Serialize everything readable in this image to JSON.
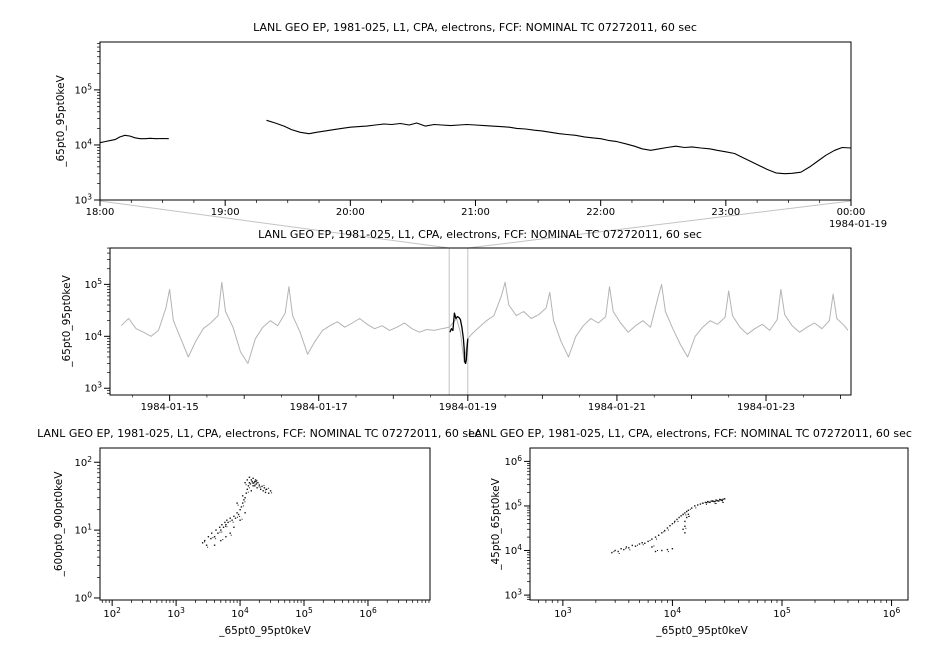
{
  "figure": {
    "background": "#ffffff",
    "context_gray": "#b4b4b4",
    "connector_gray": "#c3c3c3",
    "line_black": "#000000",
    "point_color": "#1a1a1a"
  },
  "chart_data": [
    {
      "id": "top",
      "type": "line",
      "title": "LANL GEO EP, 1981-025, L1, CPA, electrons, FCF: NOMINAL TC 07272011, 60 sec",
      "ylabel": "_65pt0_95pt0keV",
      "xlabel": "",
      "x_axis": {
        "kind": "time-hours",
        "range": [
          18,
          24
        ],
        "ticks": [
          18,
          19,
          20,
          21,
          22,
          23,
          24
        ],
        "tick_labels": [
          "18:00",
          "19:00",
          "20:00",
          "21:00",
          "22:00",
          "23:00",
          "00:00"
        ],
        "minor_step": 0.25,
        "date_label": "1984-01-19"
      },
      "y_axis": {
        "kind": "log",
        "range_log10": [
          3,
          5.87
        ],
        "tick_decades": [
          3,
          4,
          5
        ]
      },
      "series": [
        {
          "name": "_65pt0_95pt0keV",
          "color": "#000000",
          "width": 1.1,
          "x": [
            18.0,
            18.04,
            18.08,
            18.12,
            18.16,
            18.2,
            18.24,
            18.28,
            18.32,
            18.36,
            18.4,
            18.45,
            18.5,
            18.55,
            18.95,
            19.33,
            19.4,
            19.47,
            19.53,
            19.6,
            19.67,
            19.73,
            19.8,
            19.87,
            19.93,
            20.0,
            20.07,
            20.13,
            20.2,
            20.27,
            20.33,
            20.4,
            20.47,
            20.53,
            20.6,
            20.67,
            20.73,
            20.8,
            20.87,
            20.93,
            21.0,
            21.07,
            21.13,
            21.2,
            21.27,
            21.33,
            21.4,
            21.47,
            21.53,
            21.6,
            21.67,
            21.73,
            21.8,
            21.87,
            21.93,
            22.0,
            22.07,
            22.13,
            22.2,
            22.27,
            22.33,
            22.4,
            22.47,
            22.53,
            22.6,
            22.67,
            22.73,
            22.8,
            22.87,
            22.93,
            23.0,
            23.07,
            23.13,
            23.2,
            23.27,
            23.33,
            23.4,
            23.47,
            23.53,
            23.6,
            23.67,
            23.73,
            23.8,
            23.87,
            23.93,
            24.0
          ],
          "y": [
            11000.0,
            11500.0,
            12000.0,
            12500.0,
            14000.0,
            15000.0,
            14500.0,
            13500.0,
            13000.0,
            13000.0,
            13200.0,
            13000.0,
            13100.0,
            13000.0,
            null,
            28000.0,
            25000.0,
            22000.0,
            19000.0,
            17000.0,
            16000.0,
            17000.0,
            18000.0,
            19000.0,
            20000.0,
            21000.0,
            21500.0,
            22000.0,
            23000.0,
            24000.0,
            23500.0,
            24500.0,
            23000.0,
            25000.0,
            22000.0,
            23500.0,
            23000.0,
            22500.0,
            23000.0,
            23500.0,
            23000.0,
            22500.0,
            22000.0,
            21500.0,
            21000.0,
            20000.0,
            19500.0,
            18500.0,
            18000.0,
            17000.0,
            16000.0,
            15500.0,
            15000.0,
            14000.0,
            13500.0,
            13000.0,
            12000.0,
            11500.0,
            10500.0,
            9500.0,
            8500.0,
            8000.0,
            8500.0,
            9000.0,
            9500.0,
            9000.0,
            9200.0,
            8800.0,
            8500.0,
            8000.0,
            7500.0,
            7000.0,
            6000.0,
            5000.0,
            4200.0,
            3600.0,
            3100.0,
            3000.0,
            3050.0,
            3200.0,
            4000.0,
            5000.0,
            6500.0,
            8000.0,
            9000.0,
            8800.0
          ]
        }
      ]
    },
    {
      "id": "context",
      "type": "line",
      "title": "LANL GEO EP, 1981-025, L1, CPA, electrons, FCF: NOMINAL TC 07272011, 60 sec",
      "ylabel": "_65pt0_95pt0keV",
      "xlabel": "",
      "x_axis": {
        "kind": "time-days",
        "range": [
          14.2,
          24.14
        ],
        "ticks": [
          15,
          17,
          19,
          21,
          23
        ],
        "tick_labels": [
          "1984-01-15",
          "1984-01-17",
          "1984-01-19",
          "1984-01-21",
          "1984-01-23"
        ]
      },
      "y_axis": {
        "kind": "log",
        "range_log10": [
          2.87,
          5.7
        ],
        "tick_decades": [
          3,
          4,
          5
        ]
      },
      "highlight_region": {
        "x_range": [
          18.75,
          19.0
        ]
      },
      "series": [
        {
          "name": "context-series",
          "color": "#b4b4b4",
          "width": 1,
          "x": [
            14.35,
            14.45,
            14.55,
            14.65,
            14.75,
            14.85,
            14.95,
            15.0,
            15.05,
            15.15,
            15.25,
            15.35,
            15.45,
            15.55,
            15.65,
            15.7,
            15.75,
            15.85,
            15.95,
            16.05,
            16.15,
            16.25,
            16.35,
            16.45,
            16.55,
            16.6,
            16.65,
            16.75,
            16.85,
            16.95,
            17.05,
            17.15,
            17.25,
            17.35,
            17.45,
            17.55,
            17.65,
            17.75,
            17.85,
            17.95,
            18.05,
            18.15,
            18.25,
            18.35,
            18.45,
            18.55,
            18.65,
            18.75,
            18.85,
            18.9,
            18.95,
            19.0,
            19.05,
            19.15,
            19.25,
            19.35,
            19.45,
            19.5,
            19.55,
            19.65,
            19.75,
            19.85,
            19.95,
            20.05,
            20.1,
            20.15,
            20.25,
            20.35,
            20.45,
            20.55,
            20.65,
            20.75,
            20.85,
            20.9,
            20.95,
            21.05,
            21.15,
            21.25,
            21.35,
            21.45,
            21.55,
            21.6,
            21.65,
            21.75,
            21.85,
            21.95,
            22.05,
            22.15,
            22.25,
            22.35,
            22.45,
            22.5,
            22.55,
            22.65,
            22.75,
            22.85,
            22.95,
            23.05,
            23.15,
            23.2,
            23.25,
            23.35,
            23.45,
            23.55,
            23.65,
            23.75,
            23.85,
            23.9,
            23.95,
            24.05,
            24.1
          ],
          "y": [
            16000.0,
            22000.0,
            14000.0,
            12000.0,
            10000.0,
            13000.0,
            35000.0,
            80000.0,
            20000.0,
            9000.0,
            4000.0,
            8000.0,
            14000.0,
            18000.0,
            25000.0,
            110000.0,
            30000.0,
            15000.0,
            5000.0,
            3000.0,
            9000.0,
            15000.0,
            20000.0,
            16000.0,
            28000.0,
            90000.0,
            25000.0,
            12000.0,
            4500.0,
            8000.0,
            13000.0,
            16000.0,
            19000.0,
            15000.0,
            18000.0,
            22000.0,
            17000.0,
            14000.0,
            16000.0,
            13000.0,
            15000.0,
            18000.0,
            14000.0,
            12000.0,
            13500.0,
            13000.0,
            14000.0,
            15000.0,
            22000.0,
            12000.0,
            3200.0,
            9000.0,
            11000.0,
            15000.0,
            20000.0,
            25000.0,
            60000.0,
            110000.0,
            40000.0,
            25000.0,
            30000.0,
            22000.0,
            26000.0,
            35000.0,
            70000.0,
            20000.0,
            8000.0,
            4000.0,
            10000.0,
            16000.0,
            22000.0,
            18000.0,
            24000.0,
            90000.0,
            30000.0,
            18000.0,
            12000.0,
            16000.0,
            20000.0,
            15000.0,
            55000.0,
            100000.0,
            30000.0,
            14000.0,
            7000.0,
            4000.0,
            10000.0,
            15000.0,
            20000.0,
            17000.0,
            23000.0,
            75000.0,
            25000.0,
            15000.0,
            11000.0,
            14000.0,
            17000.0,
            13000.0,
            21000.0,
            80000.0,
            26000.0,
            16000.0,
            12000.0,
            15000.0,
            18000.0,
            14000.0,
            20000.0,
            65000.0,
            22000.0,
            16000.0,
            13000.0
          ]
        },
        {
          "name": "selected-interval",
          "color": "#000000",
          "width": 1.3,
          "x": [
            18.76,
            18.78,
            18.8,
            18.82,
            18.84,
            18.86,
            18.88,
            18.9,
            18.92,
            18.94,
            18.95,
            18.96,
            18.97,
            18.98,
            18.99,
            19.0
          ],
          "y": [
            12000.0,
            14000.0,
            13000.0,
            28000.0,
            22000.0,
            24000.0,
            23000.0,
            21000.0,
            15000.0,
            9000.0,
            6000.0,
            3200.0,
            3000.0,
            3500.0,
            6000.0,
            9000.0
          ]
        }
      ]
    },
    {
      "id": "scatter-left",
      "type": "scatter",
      "title": "LANL GEO EP, 1981-025, L1, CPA, electrons, FCF: NOMINAL TC 07272011, 60 sec",
      "xlabel": "_65pt0_95pt0keV",
      "ylabel": "_600pt0_900pt0keV",
      "x_axis": {
        "kind": "log",
        "range_log10": [
          1.81,
          6.97
        ],
        "tick_decades": [
          2,
          3,
          4,
          5,
          6
        ]
      },
      "y_axis": {
        "kind": "log",
        "range_log10": [
          -0.03,
          2.21
        ],
        "tick_decades": [
          0,
          1,
          2
        ]
      },
      "points_x": [
        2600.0,
        2800.0,
        3000.0,
        3200.0,
        3500.0,
        3600.0,
        4000.0,
        4200.0,
        4500.0,
        4800.0,
        5000.0,
        5200.0,
        5500.0,
        5800.0,
        6000.0,
        6200.0,
        6500.0,
        7000.0,
        7500.0,
        8000.0,
        8500.0,
        9000.0,
        9500.0,
        10000.0,
        10500.0,
        11000.0,
        11500.0,
        12000.0,
        12500.0,
        13000.0,
        13500.0,
        14000.0,
        14500.0,
        15000.0,
        15500.0,
        16000.0,
        16500.0,
        17000.0,
        17500.0,
        18000.0,
        18500.0,
        19000.0,
        20000.0,
        21000.0,
        22000.0,
        23000.0,
        24000.0,
        25000.0,
        26000.0,
        28000.0,
        30000.0,
        4000.0,
        5000.0,
        6000.0,
        7000.0,
        8000.0,
        10000.0,
        12000.0,
        9000.0,
        13000.0,
        16000.0,
        14000.0,
        12000.0,
        15000.0,
        17000.0,
        11000.0
      ],
      "points_y": [
        6.5,
        7,
        6,
        8,
        7.5,
        9,
        8,
        10,
        9,
        11,
        10,
        12,
        11,
        13,
        12,
        14,
        13,
        15,
        14,
        16,
        15,
        18,
        17,
        20,
        22,
        25,
        28,
        30,
        35,
        40,
        45,
        50,
        48,
        55,
        52,
        58,
        50,
        45,
        55,
        48,
        42,
        50,
        46,
        40,
        44,
        38,
        42,
        36,
        40,
        35,
        38,
        6,
        7,
        8,
        9,
        11,
        14,
        18,
        25,
        55,
        45,
        60,
        50,
        38,
        52,
        32
      ],
      "color": "#1a1a1a"
    },
    {
      "id": "scatter-right",
      "type": "scatter",
      "title": "LANL GEO EP, 1981-025, L1, CPA, electrons, FCF: NOMINAL TC 07272011, 60 sec",
      "xlabel": "_65pt0_95pt0keV",
      "ylabel": "_45pt0_65pt0keV",
      "x_axis": {
        "kind": "log",
        "range_log10": [
          2.7,
          6.15
        ],
        "tick_decades": [
          3,
          4,
          5
        ]
      },
      "y_axis": {
        "kind": "log",
        "range_log10": [
          2.89,
          6.3
        ],
        "tick_decades": [
          3,
          4,
          5,
          6
        ]
      },
      "points_x": [
        2800.0,
        3000.0,
        3200.0,
        3400.0,
        3600.0,
        3800.0,
        4000.0,
        4300.0,
        4600.0,
        5000.0,
        5300.0,
        5600.0,
        6000.0,
        6500.0,
        7000.0,
        7500.0,
        8000.0,
        8500.0,
        9000.0,
        9500.0,
        10000.0,
        10500.0,
        11000.0,
        11500.0,
        12000.0,
        12500.0,
        13000.0,
        13500.0,
        14000.0,
        15000.0,
        16000.0,
        17000.0,
        18000.0,
        19000.0,
        20000.0,
        21000.0,
        22000.0,
        23000.0,
        24000.0,
        25000.0,
        26000.0,
        27000.0,
        28000.0,
        30000.0,
        7000.0,
        8000.0,
        9000.0,
        10000.0,
        6500.0,
        13000.0,
        13000.0,
        13000.0,
        13500.0,
        12500.0,
        14000.0,
        20500.0,
        21500.0,
        23500.0,
        24500.0,
        25500.0,
        26500.0,
        27500.0,
        28500.0,
        29000.0
      ],
      "points_y": [
        9000.0,
        10000.0,
        9500.0,
        11000.0,
        10500.0,
        12000.0,
        11500.0,
        13000.0,
        12500.0,
        14000.0,
        15000.0,
        14500.0,
        16000.0,
        18000.0,
        20000.0,
        22000.0,
        25000.0,
        28000.0,
        32000.0,
        36000.0,
        40000.0,
        45000.0,
        50000.0,
        55000.0,
        60000.0,
        65000.0,
        70000.0,
        75000.0,
        80000.0,
        90000.0,
        100000.0,
        105000.0,
        110000.0,
        115000.0,
        120000.0,
        125000.0,
        120000.0,
        130000.0,
        125000.0,
        135000.0,
        130000.0,
        140000.0,
        135000.0,
        145000.0,
        9500.0,
        10000.0,
        10500.0,
        11000.0,
        12000.0,
        25000.0,
        35000.0,
        45000.0,
        55000.0,
        30000.0,
        65000.0,
        118000.0,
        122000.0,
        128000.0,
        126000.0,
        132000.0,
        129000.0,
        138000.0,
        133000.0,
        142000.0
      ],
      "color": "#1a1a1a"
    }
  ]
}
